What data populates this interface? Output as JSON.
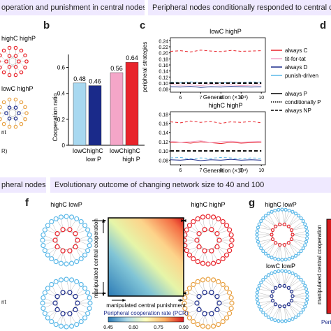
{
  "banners": {
    "top_left": "operation and punishment in central nodes",
    "top_right": "Peripheral nodes conditionally responded to central cooperation",
    "bottom_left": "pheral nodes",
    "bottom_right": "Evolutionary outcome of changing network size to 40 and 100"
  },
  "panel_letters": {
    "b": "b",
    "c": "c",
    "d": "d",
    "f": "f",
    "g": "g"
  },
  "panel_a": {
    "label_high": "highC  highP",
    "label_low": "lowC  highP",
    "cut_text_1": "nt",
    "cut_text_2": "R)"
  },
  "panel_b": {
    "ylabel": "Cooperation ratio",
    "ticks": [
      "0",
      "0.2",
      "0.4",
      "0.6"
    ],
    "group_labels": [
      "low P",
      "high P"
    ],
    "chart_data": {
      "type": "bar",
      "categories": [
        "lowC",
        "highC",
        "lowC",
        "highC"
      ],
      "values": [
        0.48,
        0.46,
        0.56,
        0.64
      ],
      "value_labels": [
        "0.48",
        "0.46",
        "0.56",
        "0.64"
      ],
      "colors": [
        "#a8d8f0",
        "#1a2a8a",
        "#f4a6c8",
        "#e8232a"
      ],
      "ylabel": "Cooperation ratio",
      "ylim": [
        0,
        0.7
      ]
    }
  },
  "panel_c": {
    "top_title": "lowC  highP",
    "bottom_title": "highC  highP",
    "ylabel": "peripheral strategies",
    "xlabel": "Generation (×10⁴)",
    "top_yticks": [
      "0.24",
      "0.22",
      "0.20",
      "0.18",
      "0.16",
      "0.14",
      "0.12",
      "0.10",
      "0.08"
    ],
    "bottom_yticks": [
      "0.18",
      "0.16",
      "0.14",
      "0.12",
      "0.10",
      "0.08"
    ],
    "xticks": [
      "6",
      "7",
      "8",
      "9",
      "10"
    ],
    "chart_data": {
      "type": "line",
      "x": [
        5.5,
        6,
        6.5,
        7,
        7.5,
        8,
        8.5,
        9,
        9.5,
        10
      ],
      "top": {
        "ylim": [
          0.07,
          0.25
        ],
        "series": [
          {
            "name": "always C conditionally",
            "color": "#e8232a",
            "dash": "dashed",
            "values": [
              0.205,
              0.207,
              0.203,
              0.209,
              0.206,
              0.204,
              0.208,
              0.205,
              0.206,
              0.207
            ]
          },
          {
            "name": "tit-for-tat",
            "color": "#f4a6c8",
            "dash": "solid",
            "values": [
              0.095,
              0.093,
              0.094,
              0.092,
              0.095,
              0.093,
              0.094,
              0.092,
              0.093,
              0.094
            ]
          },
          {
            "name": "always D",
            "color": "#1a2a8a",
            "dash": "solid",
            "values": [
              0.088,
              0.087,
              0.089,
              0.086,
              0.088,
              0.087,
              0.089,
              0.088,
              0.087,
              0.088
            ]
          },
          {
            "name": "punish-driven",
            "color": "#5bb8e8",
            "dash": "dashed",
            "values": [
              0.103,
              0.102,
              0.104,
              0.102,
              0.103,
              0.101,
              0.103,
              0.102,
              0.104,
              0.103
            ]
          },
          {
            "name": "reference",
            "color": "#000000",
            "dash": "thick-dash",
            "values": [
              0.1,
              0.1,
              0.1,
              0.1,
              0.1,
              0.1,
              0.1,
              0.1,
              0.1,
              0.1
            ]
          }
        ]
      },
      "bottom": {
        "ylim": [
          0.07,
          0.185
        ],
        "series": [
          {
            "name": "always C conditionally",
            "color": "#e8232a",
            "dash": "dashed",
            "values": [
              0.163,
              0.161,
              0.165,
              0.162,
              0.164,
              0.16,
              0.163,
              0.162,
              0.164,
              0.161
            ]
          },
          {
            "name": "always C",
            "color": "#e8232a",
            "dash": "solid",
            "values": [
              0.118,
              0.119,
              0.117,
              0.12,
              0.118,
              0.116,
              0.119,
              0.117,
              0.118,
              0.119
            ]
          },
          {
            "name": "tit-for-tat",
            "color": "#f4a6c8",
            "dash": "solid",
            "values": [
              0.121,
              0.119,
              0.12,
              0.122,
              0.118,
              0.12,
              0.121,
              0.119,
              0.12,
              0.121
            ]
          },
          {
            "name": "punish-driven",
            "color": "#5bb8e8",
            "dash": "dashed",
            "values": [
              0.085,
              0.086,
              0.083,
              0.085,
              0.084,
              0.086,
              0.085,
              0.083,
              0.085,
              0.084
            ]
          },
          {
            "name": "always D",
            "color": "#1a2a8a",
            "dash": "solid",
            "values": [
              0.081,
              0.08,
              0.082,
              0.079,
              0.081,
              0.08,
              0.082,
              0.08,
              0.081,
              0.08
            ]
          },
          {
            "name": "reference",
            "color": "#000000",
            "dash": "thick-dash",
            "values": [
              0.1,
              0.1,
              0.1,
              0.1,
              0.1,
              0.1,
              0.1,
              0.1,
              0.1,
              0.1
            ]
          }
        ]
      }
    },
    "legend": [
      {
        "label": "always C",
        "color": "#e8232a",
        "style": "solid"
      },
      {
        "label": "tit-for-tat",
        "color": "#f4a6c8",
        "style": "solid"
      },
      {
        "label": "always D",
        "color": "#1a2a8a",
        "style": "solid"
      },
      {
        "label": "punish-driven",
        "color": "#5bb8e8",
        "style": "solid"
      },
      {
        "label": "always P",
        "color": "#000000",
        "style": "solid"
      },
      {
        "label": "conditionally P",
        "color": "#000000",
        "style": "dotted"
      },
      {
        "label": "always NP",
        "color": "#000000",
        "style": "dashed"
      }
    ]
  },
  "panel_f": {
    "net_labels": {
      "top_left": "highC  lowP",
      "top_right": "highC  highP",
      "bottom_left": "lowC  lowP",
      "bottom_right": "lowC  highP"
    },
    "ylabel": "manipulated central cooperation",
    "xlabel": "manipulated central punishment",
    "colorbar_title": "Peripheral cooperation rate (PCR)",
    "colorbar_ticks": [
      "0.45",
      "0.60",
      "0.75",
      "0.90"
    ],
    "colors": {
      "high": "#d7191c",
      "mid": "#ffffbf",
      "low": "#2c7bb6"
    }
  },
  "panel_g": {
    "label_top": "highC  lowP",
    "label_bottom": "lowC  lowP",
    "ylabel": "manipulated central cooperation",
    "cut_text": "Peri"
  },
  "left_cut": {
    "text": "nt"
  }
}
